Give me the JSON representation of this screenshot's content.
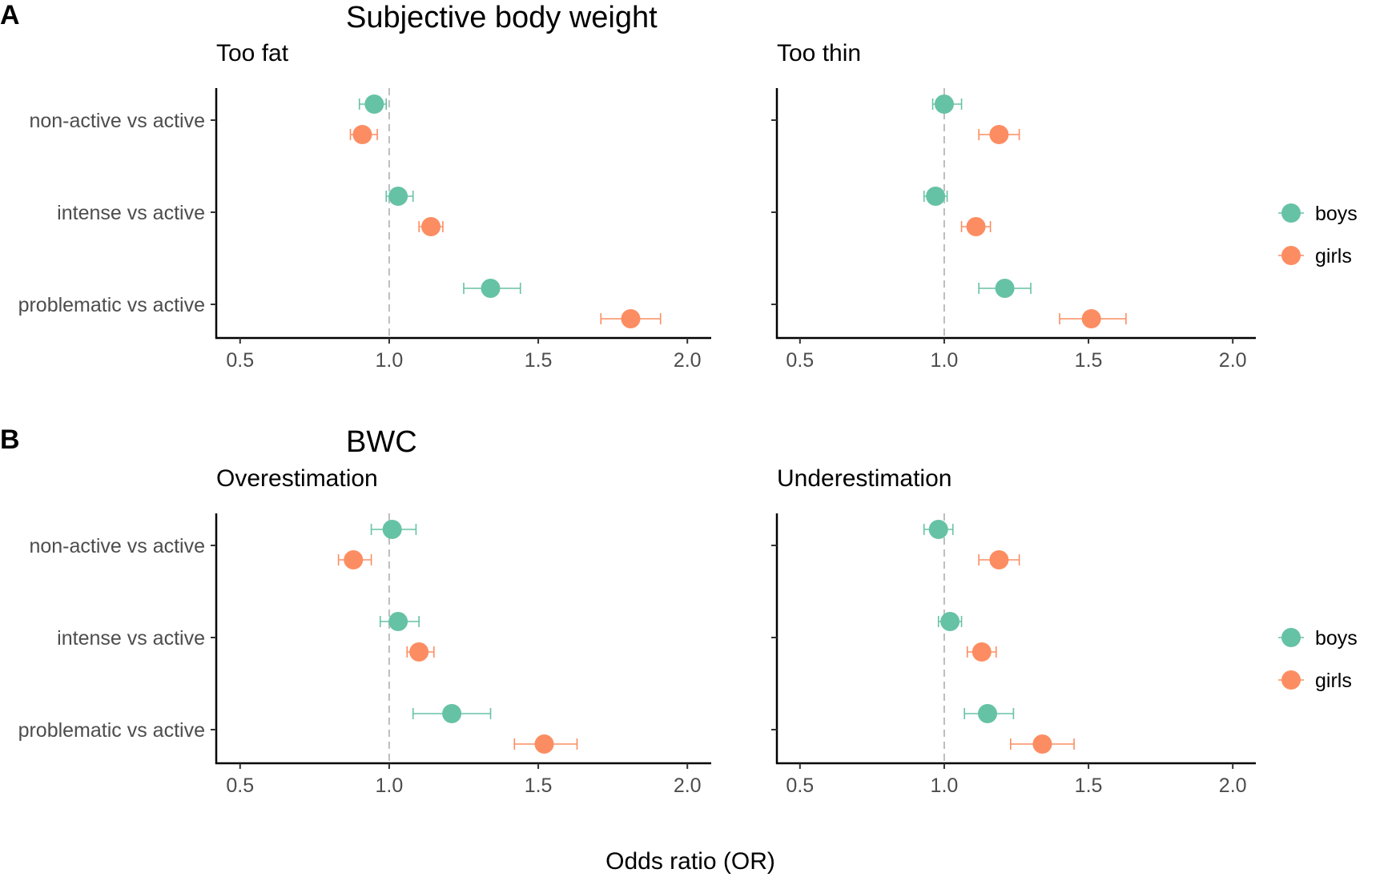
{
  "figure": {
    "panels": [
      {
        "letter": "A",
        "title": "Subjective body weight"
      },
      {
        "letter": "B",
        "title": "BWC"
      }
    ],
    "xlabel": "Odds ratio (OR)"
  },
  "chart_data": [
    {
      "type": "scatter",
      "group": "A",
      "subtitle": "Too fat",
      "categories": [
        "non-active vs active",
        "intense vs active",
        "problematic vs active"
      ],
      "xlim": [
        0.42,
        2.08
      ],
      "xticks": [
        0.5,
        1.0,
        1.5,
        2.0
      ],
      "xtick_labels": [
        "0.5",
        "1.0",
        "1.5",
        "2.0"
      ],
      "reference_line": 1.0,
      "series": [
        {
          "name": "boys",
          "color": "#66c2a5",
          "values": [
            0.95,
            1.03,
            1.34
          ],
          "ci_low": [
            0.9,
            0.99,
            1.25
          ],
          "ci_high": [
            0.99,
            1.08,
            1.44
          ]
        },
        {
          "name": "girls",
          "color": "#fc8d62",
          "values": [
            0.91,
            1.14,
            1.81
          ],
          "ci_low": [
            0.87,
            1.1,
            1.71
          ],
          "ci_high": [
            0.96,
            1.18,
            1.91
          ]
        }
      ]
    },
    {
      "type": "scatter",
      "group": "A",
      "subtitle": "Too thin",
      "categories": [
        "non-active vs active",
        "intense vs active",
        "problematic vs active"
      ],
      "xlim": [
        0.42,
        2.08
      ],
      "xticks": [
        0.5,
        1.0,
        1.5,
        2.0
      ],
      "xtick_labels": [
        "0.5",
        "1.0",
        "1.5",
        "2.0"
      ],
      "reference_line": 1.0,
      "series": [
        {
          "name": "boys",
          "color": "#66c2a5",
          "values": [
            1.0,
            0.97,
            1.21
          ],
          "ci_low": [
            0.96,
            0.93,
            1.12
          ],
          "ci_high": [
            1.06,
            1.01,
            1.3
          ]
        },
        {
          "name": "girls",
          "color": "#fc8d62",
          "values": [
            1.19,
            1.11,
            1.51
          ],
          "ci_low": [
            1.12,
            1.06,
            1.4
          ],
          "ci_high": [
            1.26,
            1.16,
            1.63
          ]
        }
      ]
    },
    {
      "type": "scatter",
      "group": "B",
      "subtitle": "Overestimation",
      "categories": [
        "non-active vs active",
        "intense vs active",
        "problematic vs active"
      ],
      "xlim": [
        0.42,
        2.08
      ],
      "xticks": [
        0.5,
        1.0,
        1.5,
        2.0
      ],
      "xtick_labels": [
        "0.5",
        "1.0",
        "1.5",
        "2.0"
      ],
      "reference_line": 1.0,
      "series": [
        {
          "name": "boys",
          "color": "#66c2a5",
          "values": [
            1.01,
            1.03,
            1.21
          ],
          "ci_low": [
            0.94,
            0.97,
            1.08
          ],
          "ci_high": [
            1.09,
            1.1,
            1.34
          ]
        },
        {
          "name": "girls",
          "color": "#fc8d62",
          "values": [
            0.88,
            1.1,
            1.52
          ],
          "ci_low": [
            0.83,
            1.06,
            1.42
          ],
          "ci_high": [
            0.94,
            1.15,
            1.63
          ]
        }
      ]
    },
    {
      "type": "scatter",
      "group": "B",
      "subtitle": "Underestimation",
      "categories": [
        "non-active vs active",
        "intense vs active",
        "problematic vs active"
      ],
      "xlim": [
        0.42,
        2.08
      ],
      "xticks": [
        0.5,
        1.0,
        1.5,
        2.0
      ],
      "xtick_labels": [
        "0.5",
        "1.0",
        "1.5",
        "2.0"
      ],
      "reference_line": 1.0,
      "series": [
        {
          "name": "boys",
          "color": "#66c2a5",
          "values": [
            0.98,
            1.02,
            1.15
          ],
          "ci_low": [
            0.93,
            0.98,
            1.07
          ],
          "ci_high": [
            1.03,
            1.06,
            1.24
          ]
        },
        {
          "name": "girls",
          "color": "#fc8d62",
          "values": [
            1.19,
            1.13,
            1.34
          ],
          "ci_low": [
            1.12,
            1.08,
            1.23
          ],
          "ci_high": [
            1.26,
            1.18,
            1.45
          ]
        }
      ]
    }
  ],
  "legend": {
    "position": "right",
    "items": [
      {
        "label": "boys",
        "color": "#66c2a5"
      },
      {
        "label": "girls",
        "color": "#fc8d62"
      }
    ]
  }
}
